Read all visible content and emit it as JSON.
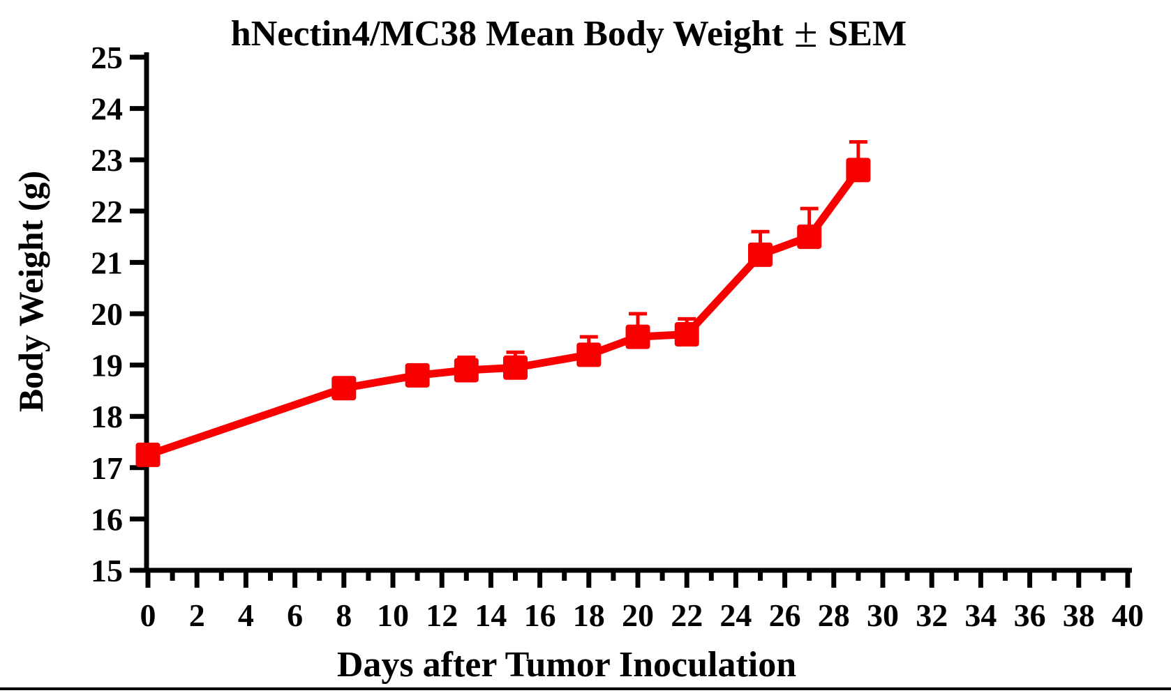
{
  "figure": {
    "title_before_pm": "hNectin4/MC38 Mean Body Weight",
    "title_pm": "±",
    "title_after_pm": "SEM",
    "colors": {
      "series": "#f80000",
      "axis": "#000000",
      "background": "#ffffff"
    }
  },
  "chart_data": {
    "type": "line",
    "title": "hNectin4/MC38 Mean Body Weight ± SEM",
    "xlabel": "Days after Tumor Inoculation",
    "ylabel": "Body Weight (g)",
    "xlim": [
      0,
      40
    ],
    "ylim": [
      15,
      25
    ],
    "x_major_ticks": [
      0,
      2,
      4,
      6,
      8,
      10,
      12,
      14,
      16,
      18,
      20,
      22,
      24,
      26,
      28,
      30,
      32,
      34,
      36,
      38,
      40
    ],
    "x_minor_tick_interval": 1,
    "y_ticks": [
      15,
      16,
      17,
      18,
      19,
      20,
      21,
      22,
      23,
      24,
      25
    ],
    "grid": false,
    "legend": "none",
    "error_bars": "SEM, upper caps only",
    "series": [
      {
        "name": "hNectin4/MC38",
        "marker": "filled-square",
        "color": "#f80000",
        "x": [
          0,
          8,
          11,
          13,
          15,
          18,
          20,
          22,
          25,
          27,
          29
        ],
        "y": [
          17.25,
          18.55,
          18.8,
          18.9,
          18.95,
          19.2,
          19.55,
          19.6,
          21.15,
          21.5,
          22.8
        ],
        "sem_upper": [
          0,
          0,
          0,
          0.25,
          0.3,
          0.35,
          0.45,
          0.3,
          0.45,
          0.55,
          0.55
        ]
      }
    ]
  }
}
